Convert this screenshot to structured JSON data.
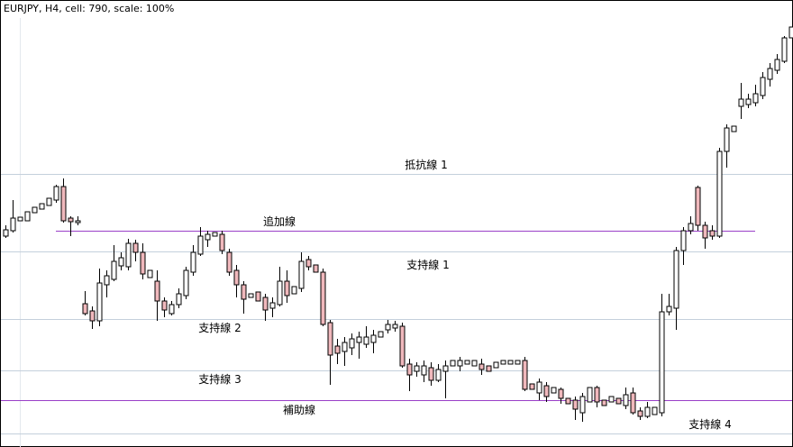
{
  "chart_data": {
    "type": "candlestick",
    "title": "EURJPY, H4, cell: 790, scale: 100%",
    "ylim": [
      0,
      496
    ],
    "up_color": "#ffffff",
    "down_color": "#f0b8bc",
    "series": {
      "open": [
        234,
        240,
        251,
        251,
        260,
        264,
        268,
        274,
        289,
        254,
        249,
        159,
        151,
        140,
        180,
        186,
        201,
        200,
        226,
        216,
        188,
        184,
        162,
        148,
        158,
        168,
        194,
        214,
        230,
        234,
        236,
        216,
        196,
        180,
        166,
        172,
        166,
        154,
        158,
        184,
        170,
        176,
        208,
        202,
        194,
        138,
        112,
        106,
        110,
        116,
        114,
        116,
        122,
        130,
        132,
        134,
        92,
        84,
        80,
        88,
        74,
        84,
        90,
        90,
        92,
        90,
        92,
        90,
        88,
        92,
        92,
        92,
        96,
        70,
        60,
        68,
        60,
        64,
        54,
        52,
        38,
        50,
        66,
        52,
        50,
        54,
        46,
        60,
        40,
        34,
        36,
        38,
        150,
        154,
        218,
        240,
        288,
        246,
        240,
        234,
        328,
        350,
        378,
        380,
        382,
        390,
        408,
        418,
        428,
        454
      ],
      "high": [
        246,
        274,
        255,
        261,
        266,
        270,
        276,
        291,
        298,
        256,
        256,
        173,
        156,
        198,
        196,
        224,
        216,
        231,
        230,
        226,
        196,
        196,
        166,
        162,
        176,
        200,
        224,
        244,
        240,
        238,
        240,
        220,
        202,
        184,
        170,
        172,
        170,
        166,
        200,
        196,
        178,
        216,
        212,
        202,
        198,
        141,
        120,
        122,
        126,
        128,
        134,
        130,
        128,
        141,
        140,
        138,
        98,
        94,
        96,
        94,
        92,
        96,
        96,
        100,
        96,
        96,
        98,
        90,
        94,
        96,
        96,
        96,
        100,
        70,
        76,
        72,
        66,
        66,
        54,
        56,
        60,
        66,
        68,
        52,
        56,
        54,
        66,
        66,
        44,
        50,
        44,
        170,
        170,
        222,
        244,
        256,
        290,
        250,
        246,
        332,
        358,
        356,
        404,
        392,
        402,
        416,
        426,
        436,
        456,
        466
      ],
      "low": [
        232,
        238,
        251,
        251,
        260,
        264,
        268,
        271,
        249,
        234,
        246,
        146,
        131,
        134,
        166,
        184,
        196,
        196,
        206,
        186,
        188,
        140,
        144,
        146,
        154,
        164,
        190,
        212,
        222,
        234,
        214,
        190,
        166,
        148,
        166,
        162,
        140,
        144,
        156,
        160,
        170,
        172,
        196,
        194,
        134,
        69,
        92,
        90,
        102,
        98,
        110,
        104,
        122,
        126,
        128,
        88,
        62,
        78,
        72,
        68,
        72,
        54,
        90,
        84,
        92,
        90,
        80,
        84,
        88,
        92,
        92,
        92,
        62,
        64,
        52,
        50,
        60,
        48,
        48,
        30,
        28,
        50,
        44,
        46,
        50,
        48,
        42,
        36,
        30,
        32,
        36,
        34,
        146,
        130,
        202,
        236,
        240,
        220,
        230,
        232,
        310,
        350,
        364,
        376,
        378,
        386,
        400,
        414,
        426,
        454
      ],
      "close": [
        241,
        254,
        255,
        261,
        266,
        270,
        276,
        289,
        251,
        250,
        251,
        148,
        140,
        182,
        190,
        206,
        210,
        226,
        216,
        192,
        196,
        162,
        152,
        158,
        170,
        196,
        216,
        234,
        236,
        238,
        218,
        194,
        180,
        164,
        170,
        162,
        152,
        160,
        184,
        168,
        178,
        206,
        200,
        194,
        136,
        102,
        104,
        116,
        120,
        122,
        122,
        124,
        128,
        136,
        136,
        90,
        80,
        90,
        90,
        74,
        86,
        90,
        96,
        96,
        96,
        96,
        86,
        84,
        94,
        96,
        96,
        96,
        64,
        64,
        72,
        56,
        66,
        54,
        48,
        42,
        56,
        66,
        50,
        46,
        56,
        48,
        58,
        38,
        34,
        44,
        44,
        150,
        156,
        218,
        240,
        248,
        246,
        232,
        234,
        328,
        354,
        356,
        386,
        386,
        392,
        410,
        420,
        430,
        454,
        466
      ]
    },
    "levels": [
      {
        "label": "抵抗線 1",
        "value": 303,
        "color": "#c4d0dc"
      },
      {
        "label": "追加線",
        "value": 240,
        "color": "#9a40c8"
      },
      {
        "label": "支持線 1",
        "value": 217,
        "color": "#c4d0dc"
      },
      {
        "label": "支持線 2",
        "value": 142,
        "color": "#c4d0dc"
      },
      {
        "label": "支持線 3",
        "value": 85,
        "color": "#c4d0dc"
      },
      {
        "label": "補助線",
        "value": 52,
        "color": "#9a40c8"
      },
      {
        "label": "支持線 4",
        "value": 15,
        "color": "#c4d0dc"
      }
    ]
  }
}
